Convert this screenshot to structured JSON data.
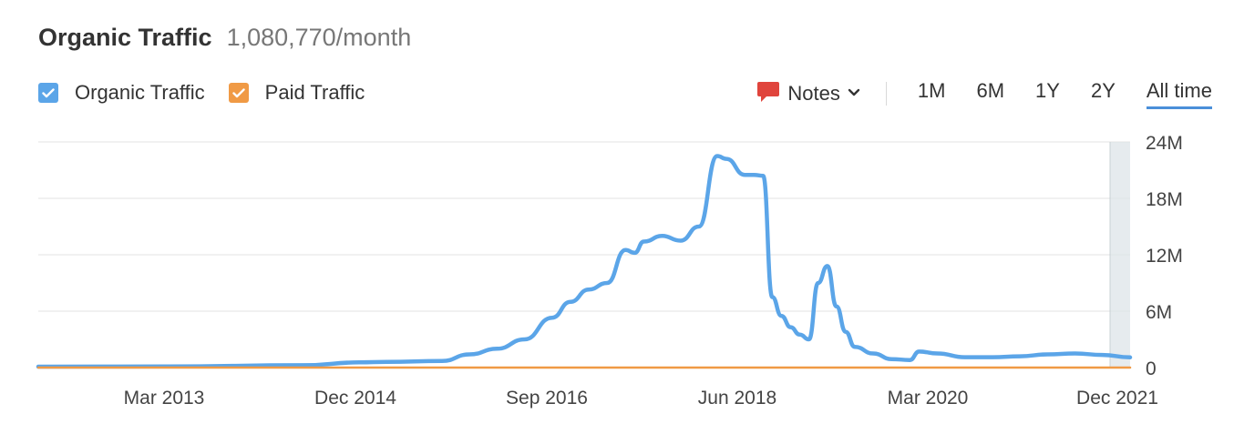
{
  "header": {
    "title": "Organic Traffic",
    "subtitle": "1,080,770/month"
  },
  "legend": [
    {
      "label": "Organic Traffic",
      "checked": true,
      "color": "#5ba5e8",
      "icon": "checkbox-checked-icon"
    },
    {
      "label": "Paid Traffic",
      "checked": true,
      "color": "#f09a45",
      "icon": "checkbox-checked-icon"
    }
  ],
  "controls": {
    "notes_label": "Notes",
    "notes_icon": "speech-bubble-icon",
    "notes_color": "#e0443c",
    "dropdown_icon": "chevron-down-icon",
    "ranges": [
      "1M",
      "6M",
      "1Y",
      "2Y",
      "All time"
    ],
    "active_range": "All time"
  },
  "chart_data": {
    "type": "line",
    "title": "Organic Traffic",
    "subtitle": "1,080,770/month",
    "x_tick_labels": [
      "Mar 2013",
      "Dec 2014",
      "Sep 2016",
      "Jun 2018",
      "Mar 2020",
      "Dec 2021"
    ],
    "y_tick_labels": [
      "0",
      "6M",
      "12M",
      "18M",
      "24M"
    ],
    "ylim": [
      0,
      24000000
    ],
    "xlim": [
      "2012-01",
      "2021-12"
    ],
    "grid": true,
    "legend_position": "top-left",
    "series": [
      {
        "name": "Organic Traffic",
        "color": "#5ba5e8",
        "x": [
          "2012-01",
          "2013-03",
          "2014-06",
          "2014-12",
          "2015-03",
          "2015-09",
          "2015-12",
          "2016-03",
          "2016-06",
          "2016-09",
          "2016-11",
          "2017-01",
          "2017-03",
          "2017-05",
          "2017-06",
          "2017-07",
          "2017-09",
          "2017-11",
          "2018-01",
          "2018-03",
          "2018-04",
          "2018-06",
          "2018-07",
          "2018-08",
          "2018-09",
          "2018-10",
          "2018-11",
          "2018-12",
          "2019-01",
          "2019-02",
          "2019-03",
          "2019-04",
          "2019-05",
          "2019-06",
          "2019-08",
          "2019-10",
          "2019-12",
          "2020-01",
          "2020-03",
          "2020-06",
          "2020-09",
          "2020-12",
          "2021-03",
          "2021-06",
          "2021-09",
          "2021-12"
        ],
        "values": [
          100000,
          120000,
          250000,
          550000,
          600000,
          700000,
          1400000,
          2000000,
          3000000,
          5300000,
          7000000,
          8300000,
          9000000,
          12500000,
          12200000,
          13400000,
          14000000,
          13500000,
          15000000,
          22500000,
          22200000,
          20500000,
          20500000,
          20400000,
          7500000,
          5500000,
          4300000,
          3500000,
          3000000,
          9000000,
          10800000,
          6500000,
          3800000,
          2200000,
          1500000,
          900000,
          800000,
          1700000,
          1500000,
          1100000,
          1100000,
          1200000,
          1400000,
          1500000,
          1350000,
          1080770
        ]
      },
      {
        "name": "Paid Traffic",
        "color": "#f09a45",
        "x": [
          "2012-01",
          "2021-12"
        ],
        "values": [
          0,
          0
        ]
      }
    ]
  }
}
